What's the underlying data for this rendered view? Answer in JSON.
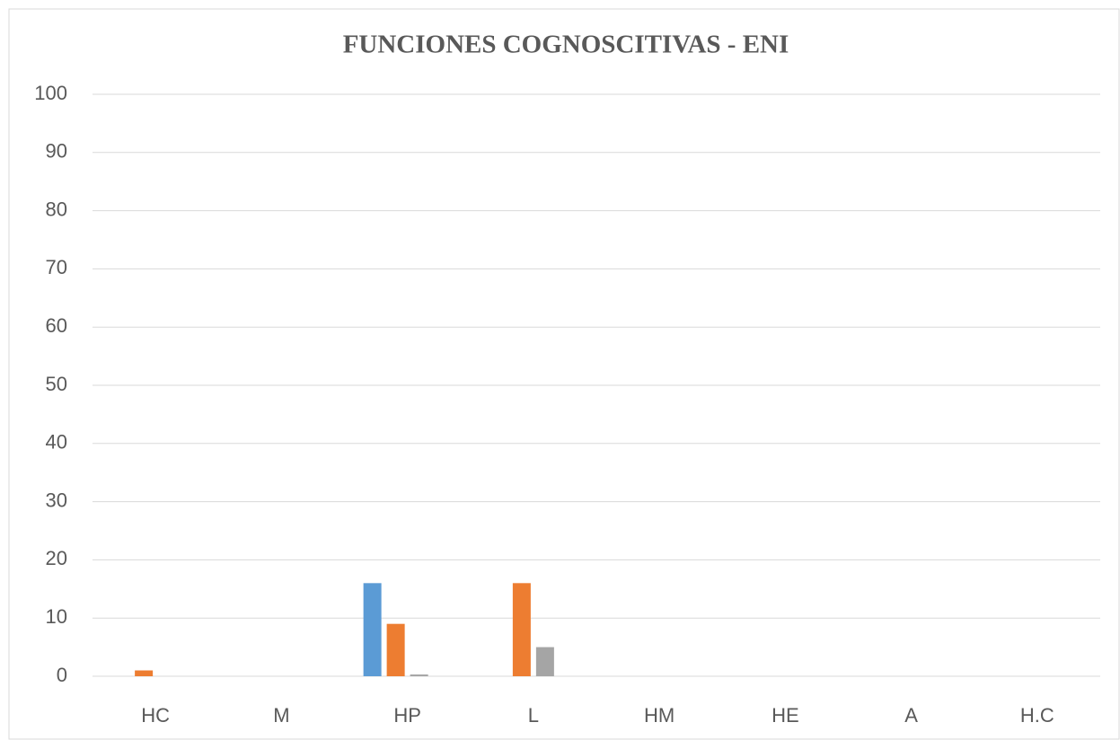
{
  "chart_data": {
    "type": "bar",
    "title": "FUNCIONES COGNOSCITIVAS - ENI",
    "categories": [
      "HC",
      "M",
      "HP",
      "L",
      "HM",
      "HE",
      "A",
      "H.C"
    ],
    "series": [
      {
        "color": "#5b9bd5",
        "values": [
          0,
          0,
          16,
          0,
          0,
          0,
          0,
          0
        ]
      },
      {
        "color": "#ed7d31",
        "values": [
          1,
          0,
          9,
          16,
          0,
          0,
          0,
          0
        ]
      },
      {
        "color": "#a5a5a5",
        "values": [
          0,
          0,
          0.3,
          5,
          0,
          0,
          0,
          0
        ]
      },
      {
        "color": "#ffc000",
        "values": [
          0,
          0,
          0,
          0,
          0,
          0,
          0,
          0
        ]
      }
    ],
    "ylim": [
      0,
      100
    ],
    "yticks": [
      0,
      10,
      20,
      30,
      40,
      50,
      60,
      70,
      80,
      90,
      100
    ],
    "grid": true
  }
}
